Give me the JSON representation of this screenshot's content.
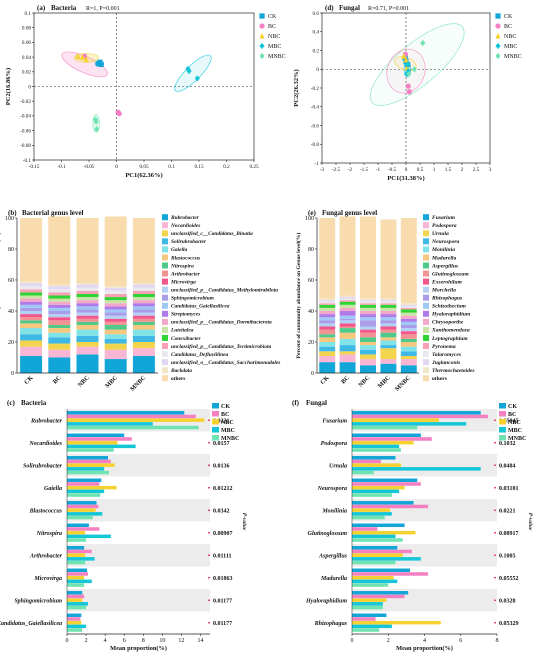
{
  "colors": {
    "CK": "#12a6d8",
    "BC": "#f47fc2",
    "NBC": "#f5d22f",
    "MBC": "#14c6d6",
    "MNBC": "#6fe3b0"
  },
  "chart_data": [
    {
      "id": "a",
      "type": "scatter",
      "panel_label": "(a)",
      "title": "Bacteria",
      "stat": "R=1, P=0.001",
      "xlabel": "PC1(62.36%)",
      "ylabel": "PC2(16.86%)",
      "xlim": [
        -0.15,
        0.25
      ],
      "ylim": [
        -0.1,
        0.1
      ],
      "xticks": [
        "-0.15",
        "-0.1",
        "-0.05",
        "0",
        "0.05",
        "0.1",
        "0.15",
        "0.2",
        "0.25"
      ],
      "yticks": [
        "0.1",
        "0.08",
        "0.06",
        "0.04",
        "0.02",
        "0",
        "-0.02",
        "-0.04",
        "-0.06",
        "-0.08",
        "-0.1"
      ],
      "legend": [
        "CK",
        "BC",
        "NBC",
        "MBC",
        "MNBC"
      ],
      "series": [
        {
          "name": "CK",
          "marker": "square",
          "points": [
            [
              -0.033,
              0.031
            ],
            [
              -0.03,
              0.033
            ],
            [
              -0.028,
              0.03
            ]
          ]
        },
        {
          "name": "BC",
          "marker": "circle",
          "points": [
            [
              0.003,
              -0.035
            ],
            [
              0.005,
              -0.037
            ],
            [
              -0.058,
              0.041
            ]
          ]
        },
        {
          "name": "NBC",
          "marker": "triangle",
          "points": [
            [
              -0.07,
              0.041
            ],
            [
              -0.062,
              0.04
            ],
            [
              -0.055,
              0.037
            ]
          ]
        },
        {
          "name": "MBC",
          "marker": "diamond",
          "points": [
            [
              0.13,
              0.024
            ],
            [
              0.132,
              0.021
            ],
            [
              0.147,
              0.011
            ]
          ]
        },
        {
          "name": "MNBC",
          "marker": "diamond",
          "points": [
            [
              -0.038,
              -0.045
            ],
            [
              -0.037,
              -0.048
            ],
            [
              -0.036,
              -0.058
            ]
          ]
        }
      ]
    },
    {
      "id": "d",
      "type": "scatter",
      "panel_label": "(d)",
      "title": "Fungal",
      "stat": "R=0.71, P=0.001",
      "xlabel": "PC1(31.38%)",
      "ylabel": "PC2(26.32%)",
      "xlim": [
        -3,
        3
      ],
      "ylim": [
        -1,
        0.6
      ],
      "xticks": [
        "-3",
        "-2.5",
        "-2",
        "-1.5",
        "-1",
        "-0.5",
        "0",
        "0.5",
        "1",
        "1.5",
        "2",
        "2.5",
        "3"
      ],
      "yticks": [
        "0.6",
        "0.4",
        "0.2",
        "0",
        "-0.2",
        "-0.4",
        "-0.6",
        "-0.8",
        "-1"
      ],
      "legend": [
        "CK",
        "BC",
        "NBC",
        "MBC",
        "MNBC"
      ],
      "series": [
        {
          "name": "CK",
          "marker": "square",
          "points": [
            [
              -0.03,
              0.12
            ],
            [
              0.0,
              0.08
            ],
            [
              0.06,
              0.05
            ]
          ]
        },
        {
          "name": "BC",
          "marker": "circle",
          "points": [
            [
              -0.02,
              0.16
            ],
            [
              0.08,
              -0.18
            ],
            [
              0.12,
              -0.24
            ]
          ]
        },
        {
          "name": "NBC",
          "marker": "triangle",
          "points": [
            [
              -0.08,
              0.14
            ],
            [
              0.0,
              0.1
            ],
            [
              0.04,
              0.02
            ]
          ]
        },
        {
          "name": "MBC",
          "marker": "diamond",
          "points": [
            [
              0.02,
              -0.05
            ],
            [
              0.05,
              0.05
            ],
            [
              0.08,
              -0.02
            ]
          ]
        },
        {
          "name": "MNBC",
          "marker": "diamond",
          "points": [
            [
              0.6,
              0.28
            ],
            [
              0.3,
              0.0
            ],
            [
              0.1,
              -0.05
            ]
          ]
        }
      ]
    },
    {
      "id": "b",
      "type": "bar",
      "panel_label": "(b)",
      "title": "Bacterial genus level",
      "ylabel": "Percent of community abundance on Genus level(%)",
      "ylim": [
        0,
        100
      ],
      "yticks": [
        "0",
        "20",
        "40",
        "60",
        "80",
        "100"
      ],
      "categories": [
        "CK",
        "BC",
        "NBC",
        "MBC",
        "MNBC"
      ],
      "series": [
        {
          "name": "Rubrobacter",
          "color": "#12a6d8",
          "values": [
            11,
            10,
            12,
            9,
            11
          ]
        },
        {
          "name": "Nocardioides",
          "color": "#f8b6d4",
          "values": [
            6,
            5,
            5,
            6,
            5
          ]
        },
        {
          "name": "unclassified_c__Candidatus_Binatia",
          "color": "#f2d54c",
          "values": [
            4,
            4,
            3,
            4,
            4
          ]
        },
        {
          "name": "Solirubrobacter",
          "color": "#3fb8e6",
          "values": [
            4,
            4,
            4,
            3,
            4
          ]
        },
        {
          "name": "Gaiella",
          "color": "#7fe3e7",
          "values": [
            4,
            3,
            4,
            3,
            4
          ]
        },
        {
          "name": "Blastococcus",
          "color": "#f6c87f",
          "values": [
            3,
            3,
            3,
            3,
            3
          ]
        },
        {
          "name": "Nitrospira",
          "color": "#4fc989",
          "values": [
            2,
            2,
            2,
            3,
            2
          ]
        },
        {
          "name": "Arthrobacter",
          "color": "#f29393",
          "values": [
            2,
            3,
            2,
            2,
            2
          ]
        },
        {
          "name": "Microvirga",
          "color": "#f2558a",
          "values": [
            2,
            2,
            2,
            2,
            2
          ]
        },
        {
          "name": "unclassified_p__Candidatus_Methylomirabilota",
          "color": "#b3d1f5",
          "values": [
            2,
            2,
            2,
            2,
            2
          ]
        },
        {
          "name": "Sphingomicrobium",
          "color": "#a99ce8",
          "values": [
            2,
            2,
            2,
            2,
            2
          ]
        },
        {
          "name": "Candidatus_Gaiellasilicea",
          "color": "#9ec8f5",
          "values": [
            2,
            2,
            2,
            2,
            2
          ]
        },
        {
          "name": "Streptomyces",
          "color": "#b07ae8",
          "values": [
            2,
            2,
            2,
            2,
            2
          ]
        },
        {
          "name": "unclassified_p__Candidatus_Dormibacterota",
          "color": "#f5a7c9",
          "values": [
            2,
            2,
            2,
            2,
            2
          ]
        },
        {
          "name": "Luteitalea",
          "color": "#c9e4a6",
          "values": [
            2,
            2,
            2,
            2,
            2
          ]
        },
        {
          "name": "Conexibacter",
          "color": "#2fd335",
          "values": [
            2,
            2,
            2,
            2,
            2
          ]
        },
        {
          "name": "unclassified_p__Candidatus_Tectimicrobiota",
          "color": "#f8a1b4",
          "values": [
            2,
            2,
            2,
            2,
            2
          ]
        },
        {
          "name": "Candidatus_Defluviilinea",
          "color": "#e9e9ef",
          "values": [
            2,
            2,
            2,
            2,
            2
          ]
        },
        {
          "name": "unclassified_o__Candidatus_Saccharimonadales",
          "color": "#e2d6f2",
          "values": [
            2,
            2,
            2,
            2,
            2
          ]
        },
        {
          "name": "Backdaia",
          "color": "#f1e6c8",
          "values": [
            1,
            1,
            1,
            1,
            1
          ]
        },
        {
          "name": "others",
          "color": "#f9dcae",
          "values": [
            41,
            44,
            42,
            45,
            42
          ]
        }
      ]
    },
    {
      "id": "e",
      "type": "bar",
      "panel_label": "(e)",
      "title": "Fungal genus level",
      "ylabel": "Percent of community abundance on Genus level(%)",
      "ylim": [
        0,
        100
      ],
      "yticks": [
        "0",
        "20",
        "40",
        "60",
        "80",
        "100"
      ],
      "categories": [
        "CK",
        "BC",
        "NBC",
        "MBC",
        "MNBC"
      ],
      "series": [
        {
          "name": "Fusarium",
          "color": "#12a6d8",
          "values": [
            7,
            7,
            5,
            6,
            5
          ]
        },
        {
          "name": "Podospora",
          "color": "#f8b6d4",
          "values": [
            4,
            5,
            4,
            3,
            4
          ]
        },
        {
          "name": "Urnula",
          "color": "#f2d54c",
          "values": [
            3,
            2,
            3,
            7,
            2
          ]
        },
        {
          "name": "Neurospora",
          "color": "#3fb8e6",
          "values": [
            3,
            4,
            3,
            2,
            3
          ]
        },
        {
          "name": "Monilinia",
          "color": "#7fe3e7",
          "values": [
            3,
            4,
            3,
            3,
            3
          ]
        },
        {
          "name": "Madurella",
          "color": "#f6c87f",
          "values": [
            3,
            4,
            2,
            2,
            3
          ]
        },
        {
          "name": "Aspergillus",
          "color": "#4fc989",
          "values": [
            2,
            3,
            3,
            3,
            2
          ]
        },
        {
          "name": "Glutinoglossum",
          "color": "#f29393",
          "values": [
            3,
            1,
            3,
            2,
            3
          ]
        },
        {
          "name": "Exserohilum",
          "color": "#f2558a",
          "values": [
            2,
            2,
            2,
            2,
            2
          ]
        },
        {
          "name": "Morchella",
          "color": "#b3d1f5",
          "values": [
            2,
            2,
            2,
            2,
            2
          ]
        },
        {
          "name": "Rhizophagus",
          "color": "#a99ce8",
          "values": [
            2,
            1,
            4,
            2,
            2
          ]
        },
        {
          "name": "Schizothecium",
          "color": "#9ec8f5",
          "values": [
            2,
            2,
            2,
            2,
            2
          ]
        },
        {
          "name": "Hyaloraphidium",
          "color": "#b07ae8",
          "values": [
            2,
            3,
            2,
            2,
            2
          ]
        },
        {
          "name": "Chrysoporthe",
          "color": "#f5a7c9",
          "values": [
            2,
            2,
            2,
            2,
            2
          ]
        },
        {
          "name": "Xanthomendoza",
          "color": "#c9e4a6",
          "values": [
            2,
            2,
            2,
            2,
            2
          ]
        },
        {
          "name": "Leptographium",
          "color": "#2fd335",
          "values": [
            2,
            2,
            2,
            2,
            2
          ]
        },
        {
          "name": "Pyronema",
          "color": "#f8a1b4",
          "values": [
            1,
            1,
            1,
            1,
            1
          ]
        },
        {
          "name": "Talaromyces",
          "color": "#e9e9ef",
          "values": [
            1,
            1,
            1,
            1,
            1
          ]
        },
        {
          "name": "Juglanconis",
          "color": "#e2d6f2",
          "values": [
            1,
            1,
            1,
            1,
            1
          ]
        },
        {
          "name": "Thermochaetoides",
          "color": "#f1e6c8",
          "values": [
            1,
            1,
            1,
            1,
            1
          ]
        },
        {
          "name": "others",
          "color": "#f9dcae",
          "values": [
            52,
            51,
            53,
            51,
            55
          ]
        }
      ]
    },
    {
      "id": "c",
      "type": "bar",
      "orientation": "horizontal",
      "panel_label": "(c)",
      "title": "Bacteria",
      "xlabel": "Mean proportion(%)",
      "pvalue_label": "P-value",
      "xlim": [
        0,
        15
      ],
      "xticks": [
        "0",
        "2",
        "4",
        "6",
        "8",
        "10",
        "12",
        "14"
      ],
      "legend": [
        "CK",
        "BC",
        "NBC",
        "MBC",
        "MNBC"
      ],
      "categories": [
        "Rubrobacter",
        "Nocardioides",
        "Solirubrobacter",
        "Gaiella",
        "Blastococcus",
        "Nitrospira",
        "Arthrobacter",
        "Microvirga",
        "Sphingomicrobium",
        "Candidatus_Gaiellasilicea"
      ],
      "pvalues": [
        "0.0221",
        "0.0157",
        "0.0136",
        "0.01212",
        "0.0342",
        "0.00907",
        "0.01111",
        "0.01863",
        "0.01177",
        "0.01177"
      ],
      "series": [
        {
          "name": "CK",
          "values": [
            12.3,
            6.0,
            4.3,
            3.6,
            3.1,
            2.3,
            1.8,
            2.1,
            1.6,
            1.5
          ]
        },
        {
          "name": "BC",
          "values": [
            13.5,
            6.8,
            4.6,
            3.4,
            3.3,
            3.4,
            2.6,
            2.2,
            1.8,
            1.4
          ]
        },
        {
          "name": "NBC",
          "values": [
            14.4,
            5.3,
            5.0,
            5.2,
            3.0,
            1.9,
            1.9,
            1.8,
            1.6,
            1.5
          ]
        },
        {
          "name": "MBC",
          "values": [
            9.0,
            7.2,
            3.9,
            3.9,
            3.7,
            4.6,
            2.9,
            2.6,
            2.2,
            2.0
          ]
        },
        {
          "name": "MNBC",
          "values": [
            13.8,
            4.9,
            4.4,
            3.5,
            2.7,
            2.0,
            1.9,
            1.8,
            2.0,
            1.6
          ]
        }
      ]
    },
    {
      "id": "f",
      "type": "bar",
      "orientation": "horizontal",
      "panel_label": "(f)",
      "title": "Fungal",
      "xlabel": "Mean proportion(%)",
      "pvalue_label": "P-value",
      "xlim": [
        0,
        8
      ],
      "xticks": [
        "0",
        "2",
        "4",
        "6",
        "8"
      ],
      "legend": [
        "CK",
        "BC",
        "NBC",
        "MBC",
        "MNBC"
      ],
      "categories": [
        "Fusarium",
        "Podospora",
        "Urnula",
        "Neurospora",
        "Monilinia",
        "Glutinoglossum",
        "Aspergillus",
        "Madurella",
        "Hyaloraphidium",
        "Rhizophagus"
      ],
      "pvalues": [
        "0.05945",
        "0.1032",
        "0.0484",
        "0.03101",
        "0.0221",
        "0.08917",
        "0.1005",
        "0.05552",
        "0.0328",
        "0.05329"
      ],
      "series": [
        {
          "name": "CK",
          "values": [
            7.1,
            3.8,
            2.4,
            3.6,
            3.4,
            2.9,
            2.5,
            3.2,
            3.1,
            1.9
          ]
        },
        {
          "name": "BC",
          "values": [
            7.5,
            4.4,
            1.6,
            3.8,
            4.2,
            1.4,
            3.3,
            4.2,
            2.9,
            1.3
          ]
        },
        {
          "name": "NBC",
          "values": [
            4.8,
            3.4,
            2.7,
            2.9,
            2.1,
            3.5,
            2.8,
            2.3,
            1.9,
            4.9
          ]
        },
        {
          "name": "MBC",
          "values": [
            6.3,
            2.6,
            7.1,
            2.6,
            2.2,
            2.4,
            3.8,
            2.5,
            1.7,
            2.2
          ]
        },
        {
          "name": "MNBC",
          "values": [
            3.6,
            2.7,
            1.2,
            2.2,
            1.8,
            2.8,
            2.4,
            2.0,
            1.7,
            1.5
          ]
        }
      ]
    }
  ]
}
